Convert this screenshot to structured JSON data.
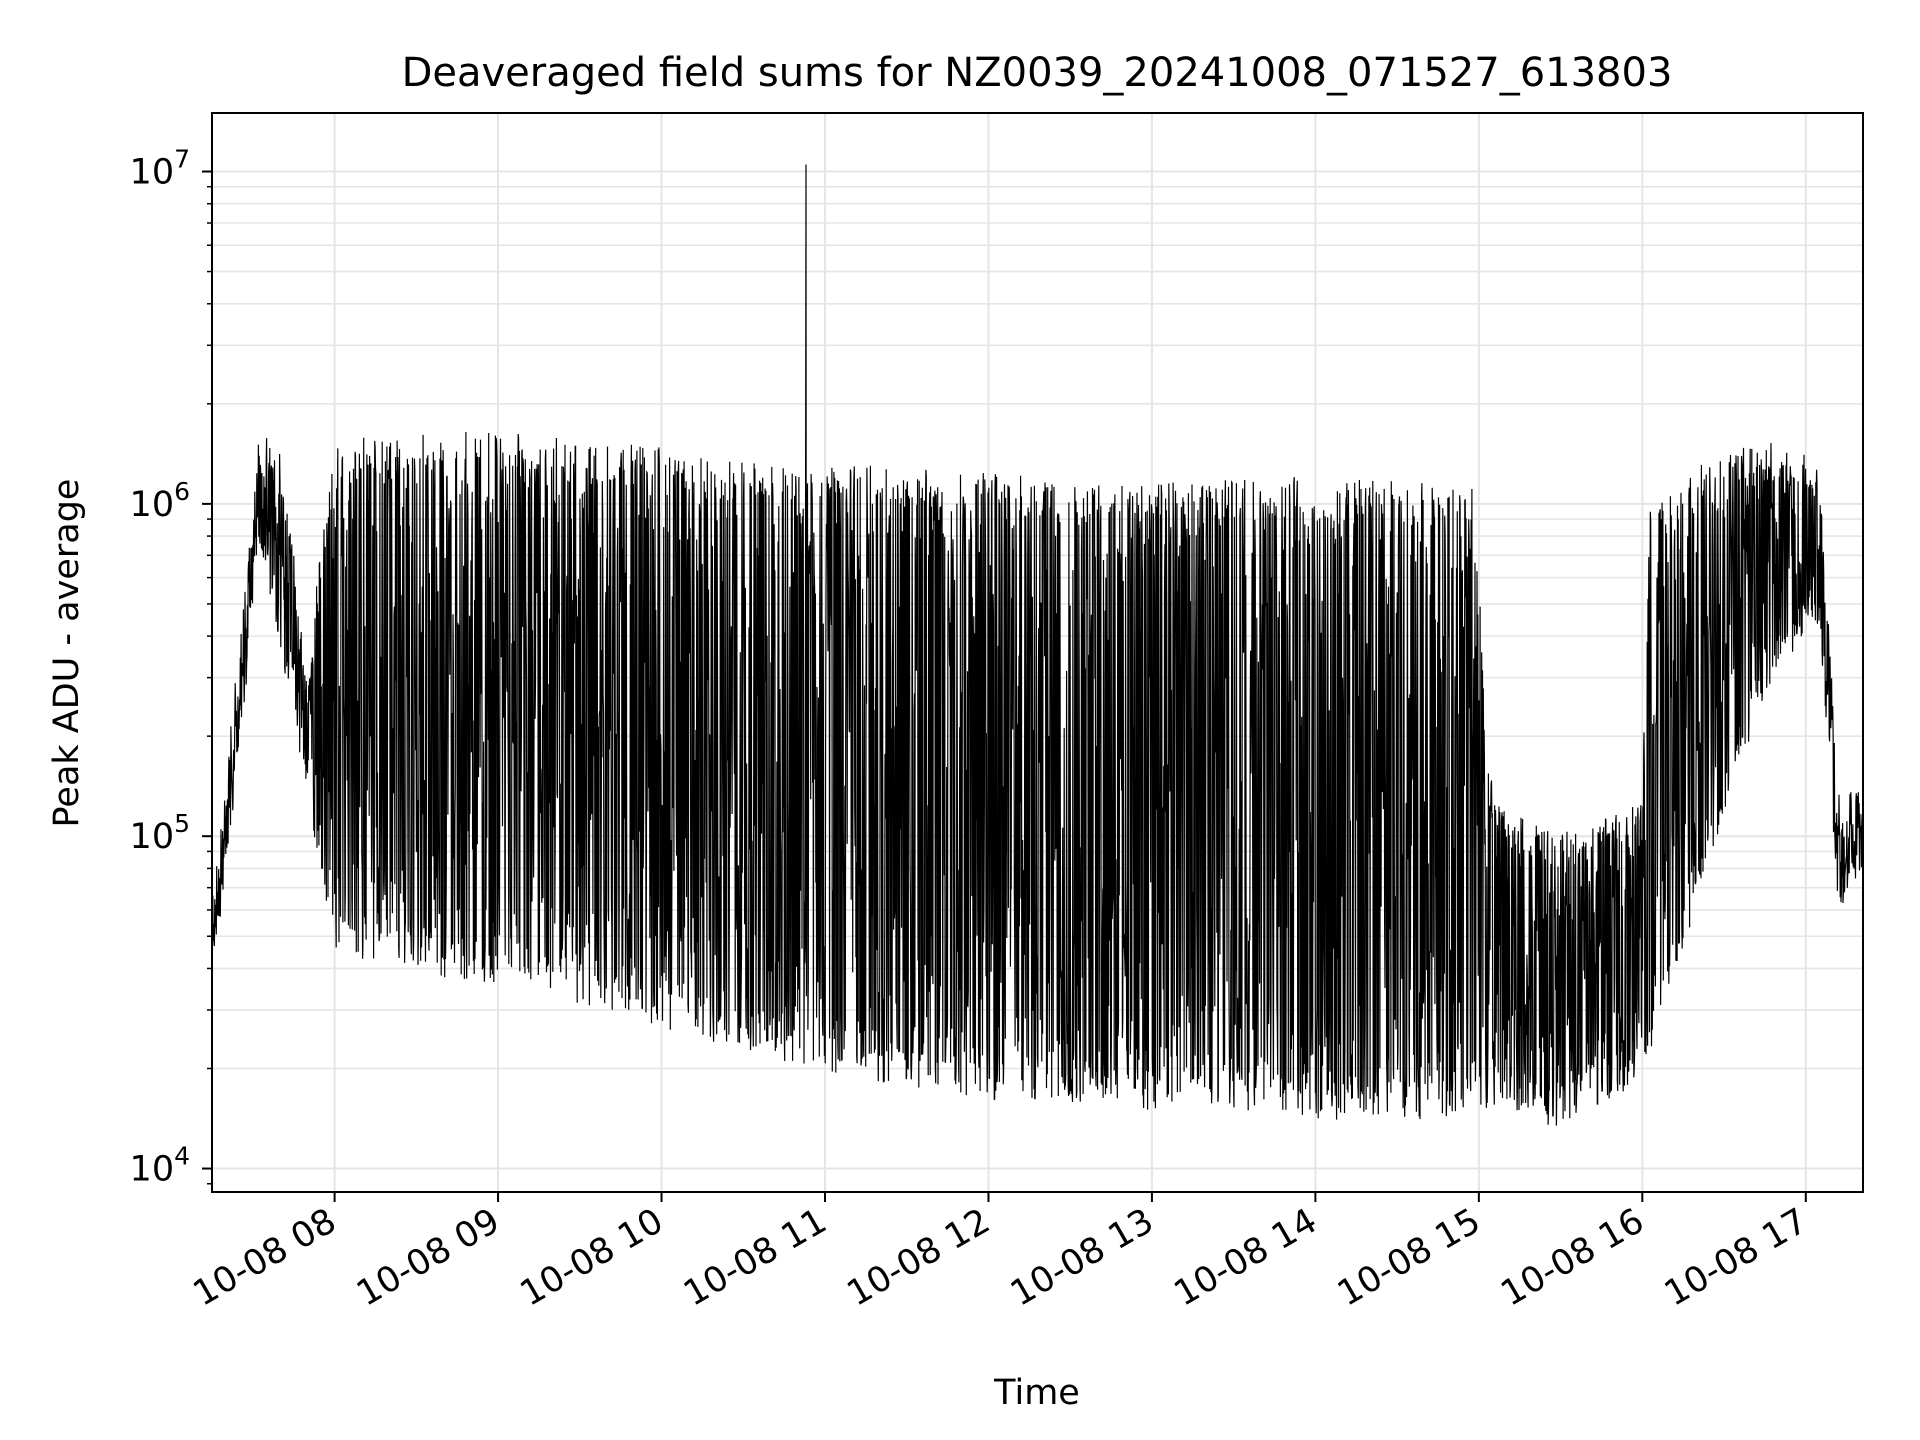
{
  "chart_data": {
    "type": "line",
    "title": "Deaveraged field sums for NZ0039_20241008_071527_613803",
    "xlabel": "Time",
    "ylabel": "Peak ADU - average",
    "x_scale": "time",
    "y_scale": "log",
    "xlim": [
      "2024-10-08 07:15",
      "2024-10-08 17:21"
    ],
    "ylim": [
      8500,
      15000000
    ],
    "x_ticks": [
      {
        "value": "2024-10-08 08:00",
        "label": "10-08 08"
      },
      {
        "value": "2024-10-08 09:00",
        "label": "10-08 09"
      },
      {
        "value": "2024-10-08 10:00",
        "label": "10-08 10"
      },
      {
        "value": "2024-10-08 11:00",
        "label": "10-08 11"
      },
      {
        "value": "2024-10-08 12:00",
        "label": "10-08 12"
      },
      {
        "value": "2024-10-08 13:00",
        "label": "10-08 13"
      },
      {
        "value": "2024-10-08 14:00",
        "label": "10-08 14"
      },
      {
        "value": "2024-10-08 15:00",
        "label": "10-08 15"
      },
      {
        "value": "2024-10-08 16:00",
        "label": "10-08 16"
      },
      {
        "value": "2024-10-08 17:00",
        "label": "10-08 17"
      }
    ],
    "y_ticks": [
      {
        "value": 10000,
        "base": "10",
        "exp": "4"
      },
      {
        "value": 100000,
        "base": "10",
        "exp": "5"
      },
      {
        "value": 1000000,
        "base": "10",
        "exp": "6"
      },
      {
        "value": 10000000,
        "base": "10",
        "exp": "7"
      }
    ],
    "grid": true,
    "line_color": "#000000",
    "grid_color": "#e5e5e5",
    "envelope": {
      "description_points": [
        {
          "t": "2024-10-08 07:15",
          "low": 40000,
          "high": 60000
        },
        {
          "t": "2024-10-08 07:20",
          "low": 80000,
          "high": 130000
        },
        {
          "t": "2024-10-08 07:27",
          "low": 280000,
          "high": 500000
        },
        {
          "t": "2024-10-08 07:32",
          "low": 900000,
          "high": 1500000
        },
        {
          "t": "2024-10-08 07:40",
          "low": 400000,
          "high": 1300000
        },
        {
          "t": "2024-10-08 07:50",
          "low": 150000,
          "high": 300000
        },
        {
          "t": "2024-10-08 08:00",
          "low": 50000,
          "high": 1400000
        },
        {
          "t": "2024-10-08 09:00",
          "low": 40000,
          "high": 1450000
        },
        {
          "t": "2024-10-08 10:00",
          "low": 30000,
          "high": 1300000
        },
        {
          "t": "2024-10-08 11:00",
          "low": 22000,
          "high": 1150000
        },
        {
          "t": "2024-10-08 12:00",
          "low": 18000,
          "high": 1100000
        },
        {
          "t": "2024-10-08 13:00",
          "low": 17000,
          "high": 1050000
        },
        {
          "t": "2024-10-08 14:00",
          "low": 16000,
          "high": 1050000
        },
        {
          "t": "2024-10-08 14:58",
          "low": 16000,
          "high": 1000000
        },
        {
          "t": "2024-10-08 15:05",
          "low": 17000,
          "high": 120000
        },
        {
          "t": "2024-10-08 15:30",
          "low": 15000,
          "high": 90000
        },
        {
          "t": "2024-10-08 16:00",
          "low": 20000,
          "high": 120000
        },
        {
          "t": "2024-10-08 16:03",
          "low": 25000,
          "high": 1000000
        },
        {
          "t": "2024-10-08 16:45",
          "low": 300000,
          "high": 1400000
        },
        {
          "t": "2024-10-08 17:05",
          "low": 500000,
          "high": 1200000
        },
        {
          "t": "2024-10-08 17:12",
          "low": 65000,
          "high": 120000
        },
        {
          "t": "2024-10-08 17:21",
          "low": 90000,
          "high": 130000
        }
      ],
      "spike": {
        "t": "2024-10-08 10:53",
        "value": 10500000
      }
    }
  }
}
